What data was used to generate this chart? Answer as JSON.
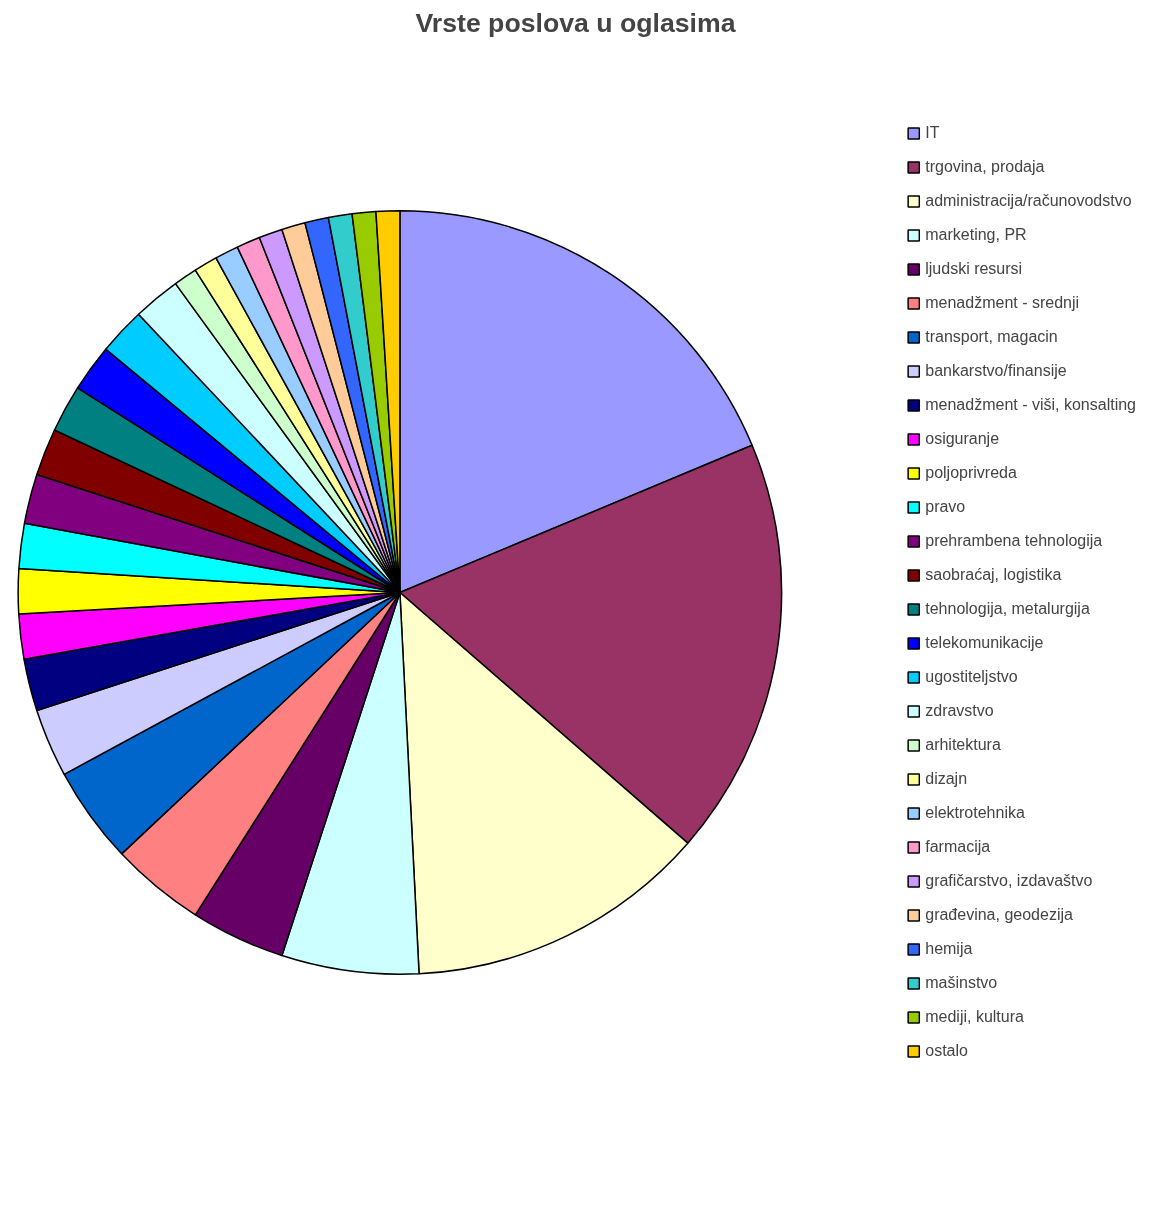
{
  "chart_data": {
    "type": "pie",
    "title": "Vrste poslova u oglasima",
    "legend": "right",
    "categories": [
      "IT",
      "trgovina, prodaja",
      "administracija/računovodstvo",
      "marketing, PR",
      "ljudski resursi",
      "menadžment - srednji",
      "transport, magacin",
      "bankarstvo/finansije",
      "menadžment - viši, konsalting",
      "osiguranje",
      "poljoprivreda",
      "pravo",
      "prehrambena tehnologija",
      "saobraćaj, logistika",
      "tehnologija, metalurgija",
      "telekomunikacije",
      "ugostiteljstvo",
      "zdravstvo",
      "arhitektura",
      "dizajn",
      "elektrotehnika",
      "farmacija",
      "grafičarstvo, izdavaštvo",
      "građevina, geodezija",
      "hemija",
      "mašinstvo",
      "mediji, kultura",
      "ostalo"
    ],
    "values": [
      18.7,
      17.7,
      12.8,
      5.8,
      4.0,
      4.0,
      4.1,
      2.9,
      2.2,
      1.9,
      1.9,
      1.9,
      2.1,
      2.0,
      2.0,
      2.0,
      2.0,
      2.0,
      1.0,
      1.0,
      1.0,
      1.0,
      1.0,
      1.0,
      1.0,
      1.0,
      1.0,
      1.0
    ],
    "colors": [
      "#9999ff",
      "#993366",
      "#ffffcc",
      "#ccffff",
      "#660066",
      "#ff8080",
      "#0066cc",
      "#ccccff",
      "#000080",
      "#ff00ff",
      "#ffff00",
      "#00ffff",
      "#800080",
      "#800000",
      "#008080",
      "#0000ff",
      "#00ccff",
      "#ccffff",
      "#ccffcc",
      "#ffff99",
      "#99ccff",
      "#ff99cc",
      "#cc99ff",
      "#ffcc99",
      "#3366ff",
      "#33cccc",
      "#99cc00",
      "#ffcc00"
    ]
  }
}
